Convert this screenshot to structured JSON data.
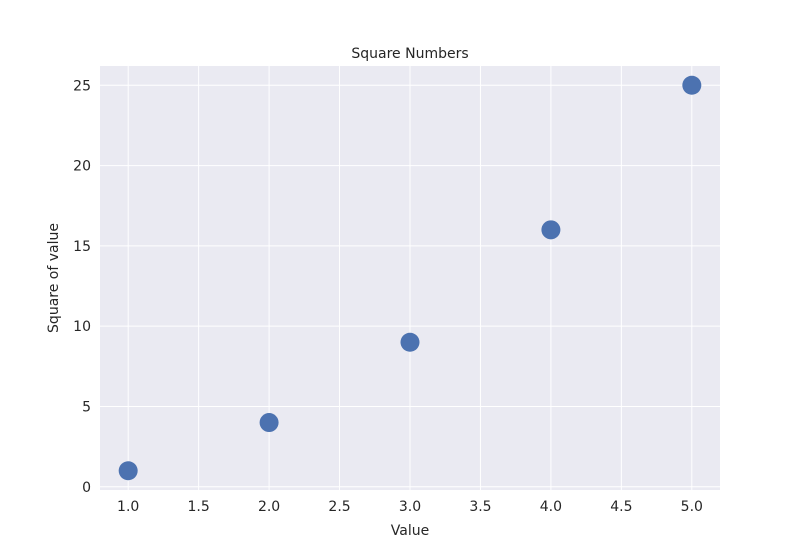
{
  "chart_data": {
    "type": "scatter",
    "title": "Square Numbers",
    "xlabel": "Value",
    "ylabel": "Square of value",
    "x": [
      1,
      2,
      3,
      4,
      5
    ],
    "y": [
      1,
      4,
      9,
      16,
      25
    ],
    "xlim": [
      0.8,
      5.2
    ],
    "ylim": [
      -0.2,
      26.2
    ],
    "xticks": [
      1.0,
      1.5,
      2.0,
      2.5,
      3.0,
      3.5,
      4.0,
      4.5,
      5.0
    ],
    "xtick_labels": [
      "1.0",
      "1.5",
      "2.0",
      "2.5",
      "3.0",
      "3.5",
      "4.0",
      "4.5",
      "5.0"
    ],
    "yticks": [
      0,
      5,
      10,
      15,
      20,
      25
    ],
    "ytick_labels": [
      "0",
      "5",
      "10",
      "15",
      "20",
      "25"
    ],
    "grid": true,
    "colors": {
      "background": "#eaeaf2",
      "grid": "#ffffff",
      "marker": "#4c72b0"
    }
  }
}
